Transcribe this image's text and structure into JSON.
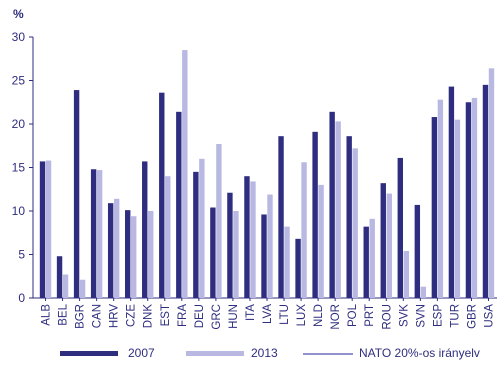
{
  "chart_data": {
    "type": "bar",
    "ylabel": "%",
    "ylim": [
      0,
      30
    ],
    "yticks": [
      "0",
      "5",
      "10",
      "15",
      "20",
      "25",
      "30"
    ],
    "grid": false,
    "legend_position": "bottom",
    "categories": [
      "ALB",
      "BEL",
      "BGR",
      "CAN",
      "HRV",
      "CZE",
      "DNK",
      "EST",
      "FRA",
      "DEU",
      "GRC",
      "HUN",
      "ITA",
      "LVA",
      "LTU",
      "LUX",
      "NLD",
      "NOR",
      "POL",
      "PRT",
      "ROU",
      "SVK",
      "SVN",
      "ESP",
      "TUR",
      "GBR",
      "USA"
    ],
    "series": [
      {
        "name": "2007",
        "color": "#2e2d7f",
        "values": [
          15.7,
          4.8,
          23.9,
          14.8,
          10.9,
          10.1,
          15.7,
          23.6,
          21.4,
          14.5,
          10.4,
          12.1,
          14.0,
          9.6,
          18.6,
          6.8,
          19.1,
          21.4,
          18.6,
          8.2,
          13.2,
          16.1,
          10.7,
          20.8,
          24.3,
          22.5,
          24.5
        ]
      },
      {
        "name": "2013",
        "color": "#b9b8e3",
        "values": [
          15.8,
          2.7,
          2.1,
          14.7,
          11.4,
          9.4,
          10.0,
          14.0,
          28.5,
          16.0,
          17.7,
          10.0,
          13.4,
          11.9,
          8.2,
          15.6,
          13.0,
          20.3,
          17.2,
          9.1,
          12.0,
          5.4,
          1.3,
          22.8,
          20.5,
          23.0,
          26.4
        ]
      }
    ],
    "reference_line": {
      "name": "NATO 20%-os irányelv",
      "color": "#6f6ebd"
    }
  }
}
